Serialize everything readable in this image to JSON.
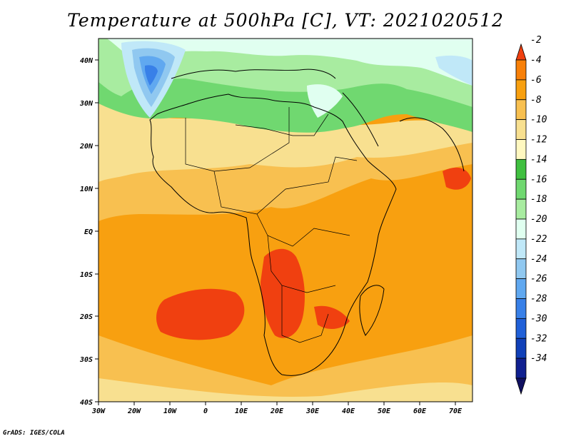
{
  "title": "Temperature at 500hPa [C], VT: 2021020512",
  "credit": "GrADS: IGES/COLA",
  "map": {
    "region": "Africa",
    "projection": "latlon",
    "lon_range": [
      -30,
      75
    ],
    "lat_range": [
      -40,
      45
    ],
    "lat_ticks": [
      "40N",
      "30N",
      "20N",
      "10N",
      "EQ",
      "10S",
      "20S",
      "30S",
      "40S"
    ],
    "lon_ticks": [
      "30W",
      "20W",
      "10W",
      "0",
      "10E",
      "20E",
      "30E",
      "40E",
      "50E",
      "60E",
      "70E"
    ],
    "variable": "temperature at 500hPa",
    "units": "C"
  },
  "colorbar": {
    "labels": [
      "-2",
      "-4",
      "-6",
      "-8",
      "-10",
      "-12",
      "-14",
      "-16",
      "-18",
      "-20",
      "-22",
      "-24",
      "-26",
      "-28",
      "-30",
      "-32",
      "-34"
    ],
    "colors": [
      "#f04010",
      "#f88008",
      "#f8a010",
      "#f8c050",
      "#f8e090",
      "#fff8c0",
      "#40c040",
      "#70d870",
      "#a8eca0",
      "#e0fff0",
      "#c0e8f8",
      "#90c8f0",
      "#60a8f0",
      "#3880e8",
      "#2060d8",
      "#1040b8",
      "#102090",
      "#101060"
    ],
    "extend": "both"
  }
}
